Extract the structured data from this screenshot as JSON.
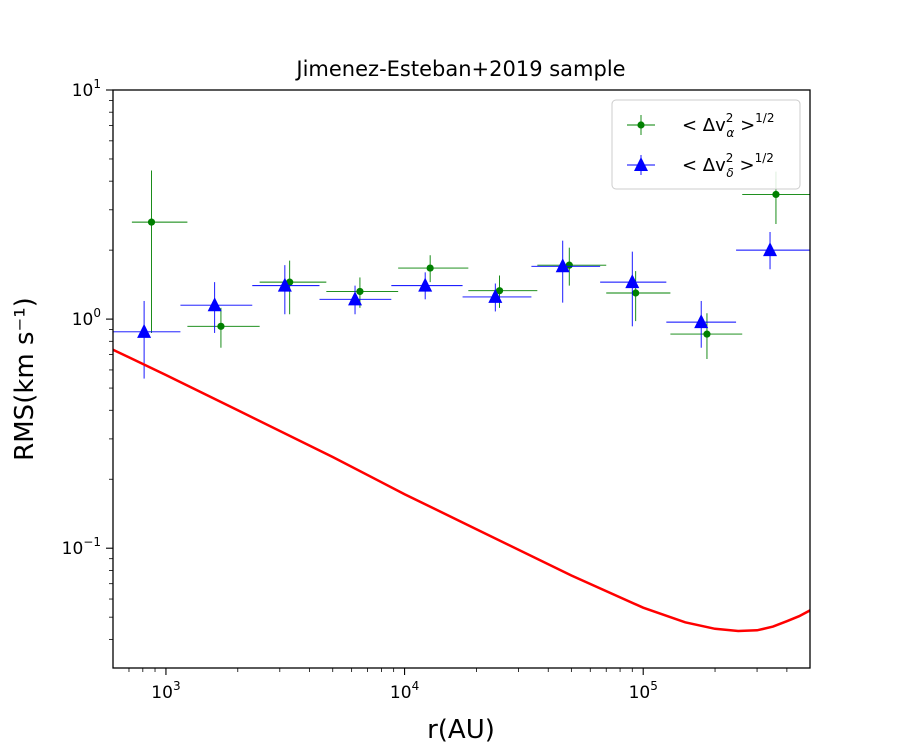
{
  "chart_data": {
    "type": "scatter",
    "title": "Jimenez-Esteban+2019 sample",
    "xlabel": "r(AU)",
    "ylabel": "RMS(km s⁻¹)",
    "xscale": "log",
    "yscale": "log",
    "xlim": [
      600,
      500000
    ],
    "ylim": [
      0.03,
      10
    ],
    "xticks": [
      {
        "value": 1000,
        "base": "10",
        "exp": "3"
      },
      {
        "value": 10000,
        "base": "10",
        "exp": "4"
      },
      {
        "value": 100000,
        "base": "10",
        "exp": "5"
      }
    ],
    "yticks": [
      {
        "value": 0.1,
        "base": "10",
        "exp": "−1"
      },
      {
        "value": 1,
        "base": "10",
        "exp": "0"
      },
      {
        "value": 10,
        "base": "10",
        "exp": "1"
      }
    ],
    "legend_position": "top-right",
    "series": [
      {
        "name": "alpha",
        "legend": {
          "pre": "< Δv",
          "sup": "2",
          "sub": "α",
          "post": " >",
          "pow": "1/2"
        },
        "marker": "circle",
        "color": "#008000",
        "points": [
          {
            "x": 870,
            "y": 2.65,
            "xerr": [
              720,
              1230
            ],
            "yerr": [
              0.87,
              4.45
            ]
          },
          {
            "x": 1700,
            "y": 0.93,
            "xerr": [
              1230,
              2470
            ],
            "yerr": [
              0.75,
              1.12
            ]
          },
          {
            "x": 3300,
            "y": 1.45,
            "xerr": [
              2470,
              4700
            ],
            "yerr": [
              1.05,
              1.8
            ]
          },
          {
            "x": 6500,
            "y": 1.32,
            "xerr": [
              4700,
              9400
            ],
            "yerr": [
              1.12,
              1.52
            ]
          },
          {
            "x": 12800,
            "y": 1.67,
            "xerr": [
              9400,
              18500
            ],
            "yerr": [
              1.45,
              1.9
            ]
          },
          {
            "x": 25000,
            "y": 1.33,
            "xerr": [
              18500,
              36000
            ],
            "yerr": [
              1.12,
              1.55
            ]
          },
          {
            "x": 49000,
            "y": 1.72,
            "xerr": [
              36000,
              70000
            ],
            "yerr": [
              1.4,
              2.05
            ]
          },
          {
            "x": 93000,
            "y": 1.3,
            "xerr": [
              70000,
              130000
            ],
            "yerr": [
              0.98,
              1.62
            ]
          },
          {
            "x": 185000,
            "y": 0.86,
            "xerr": [
              130000,
              260000
            ],
            "yerr": [
              0.67,
              1.06
            ]
          },
          {
            "x": 360000,
            "y": 3.5,
            "xerr": [
              260000,
              500000
            ],
            "yerr": [
              2.6,
              4.4
            ]
          }
        ]
      },
      {
        "name": "delta",
        "legend": {
          "pre": "< Δv",
          "sup": "2",
          "sub": "δ",
          "post": " >",
          "pow": "1/2"
        },
        "marker": "triangle",
        "color": "#0000ff",
        "points": [
          {
            "x": 810,
            "y": 0.88,
            "xerr": [
              600,
              1150
            ],
            "yerr": [
              0.55,
              1.2
            ]
          },
          {
            "x": 1600,
            "y": 1.15,
            "xerr": [
              1150,
              2300
            ],
            "yerr": [
              0.87,
              1.45
            ]
          },
          {
            "x": 3150,
            "y": 1.4,
            "xerr": [
              2300,
              4400
            ],
            "yerr": [
              1.05,
              1.72
            ]
          },
          {
            "x": 6200,
            "y": 1.22,
            "xerr": [
              4400,
              8800
            ],
            "yerr": [
              1.05,
              1.4
            ]
          },
          {
            "x": 12200,
            "y": 1.4,
            "xerr": [
              8800,
              17500
            ],
            "yerr": [
              1.22,
              1.6
            ]
          },
          {
            "x": 24000,
            "y": 1.25,
            "xerr": [
              17500,
              34000
            ],
            "yerr": [
              1.08,
              1.43
            ]
          },
          {
            "x": 46000,
            "y": 1.7,
            "xerr": [
              34000,
              66000
            ],
            "yerr": [
              1.18,
              2.2
            ]
          },
          {
            "x": 90000,
            "y": 1.45,
            "xerr": [
              66000,
              125000
            ],
            "yerr": [
              0.93,
              1.97
            ]
          },
          {
            "x": 175000,
            "y": 0.97,
            "xerr": [
              125000,
              245000
            ],
            "yerr": [
              0.75,
              1.2
            ]
          },
          {
            "x": 340000,
            "y": 2.0,
            "xerr": [
              245000,
              500000
            ],
            "yerr": [
              1.65,
              2.4
            ]
          }
        ]
      },
      {
        "name": "model",
        "marker": "line",
        "color": "#ff0000",
        "x": [
          600,
          1000,
          2000,
          5000,
          10000,
          20000,
          50000,
          100000,
          150000,
          200000,
          250000,
          300000,
          350000,
          400000,
          450000,
          500000
        ],
        "y": [
          0.735,
          0.57,
          0.4,
          0.25,
          0.172,
          0.121,
          0.076,
          0.055,
          0.0475,
          0.0445,
          0.0435,
          0.0438,
          0.0455,
          0.048,
          0.0505,
          0.0535
        ]
      }
    ]
  }
}
